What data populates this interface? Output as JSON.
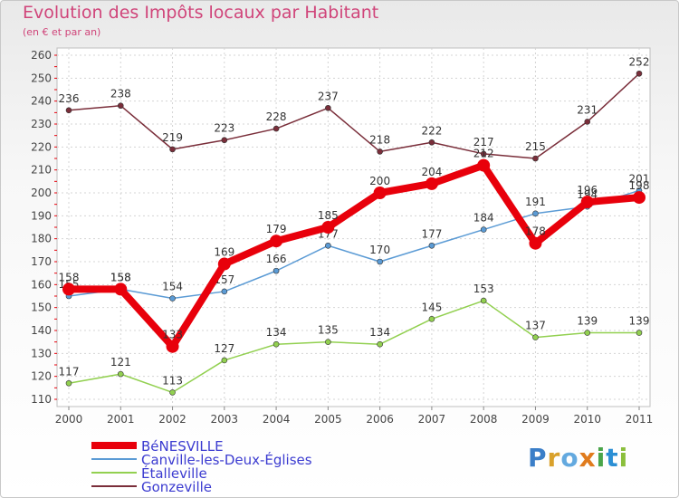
{
  "title": "Evolution des Impôts locaux par Habitant",
  "subtitle": "(en € et par an)",
  "logo": "Proxiti",
  "chart_data": {
    "type": "line",
    "title": "Evolution des Impôts locaux par Habitant",
    "subtitle": "(en € et par an)",
    "x": [
      2000,
      2001,
      2002,
      2003,
      2004,
      2005,
      2006,
      2007,
      2008,
      2009,
      2010,
      2011
    ],
    "ylim": [
      110,
      260
    ],
    "yticks": [
      110,
      120,
      130,
      140,
      150,
      160,
      170,
      180,
      190,
      200,
      210,
      220,
      230,
      240,
      250,
      260
    ],
    "grid": true,
    "legend_position": "bottom-left",
    "series": [
      {
        "name": "BéNESVILLE",
        "color": "#e8000b",
        "values": [
          158,
          158,
          133,
          169,
          179,
          185,
          200,
          204,
          212,
          178,
          196,
          198
        ]
      },
      {
        "name": "Canville-les-Deux-Églises",
        "color": "#5b9bd5",
        "values": [
          155,
          158,
          154,
          157,
          166,
          177,
          170,
          177,
          184,
          191,
          194,
          201
        ]
      },
      {
        "name": "Étalleville",
        "color": "#92d050",
        "values": [
          117,
          121,
          113,
          127,
          134,
          135,
          134,
          145,
          153,
          137,
          139,
          139
        ]
      },
      {
        "name": "Gonzeville",
        "color": "#7a2e3a",
        "values": [
          236,
          238,
          219,
          223,
          228,
          237,
          218,
          222,
          217,
          215,
          231,
          252
        ]
      }
    ]
  }
}
